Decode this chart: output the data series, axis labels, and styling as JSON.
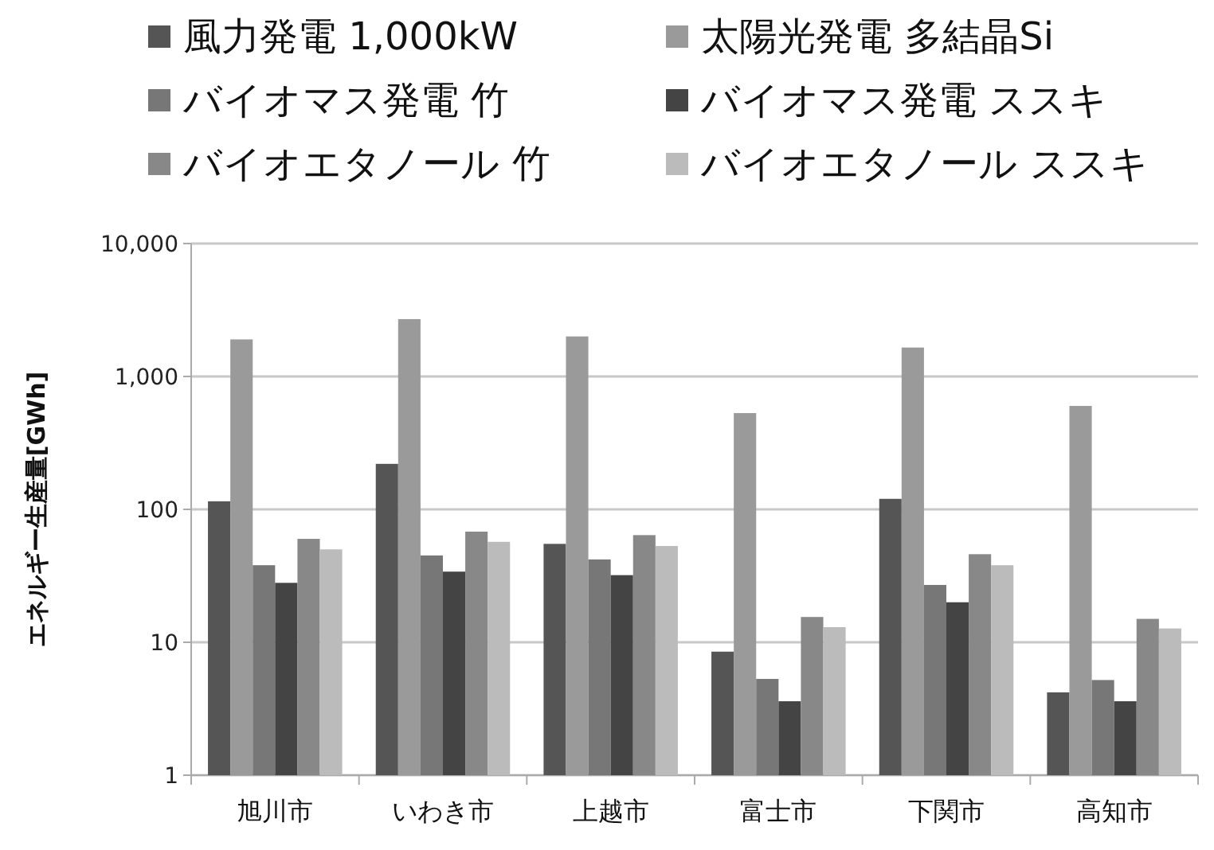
{
  "chart_data": {
    "type": "bar",
    "ylabel": "エネルギー生産量[GWh]",
    "categories": [
      "旭川市",
      "いわき市",
      "上越市",
      "富士市",
      "下関市",
      "高知市"
    ],
    "series": [
      {
        "name": "風力発電 1,000kW",
        "color": "#555555",
        "values": [
          115,
          220,
          55,
          8.5,
          120,
          4.2
        ]
      },
      {
        "name": "太陽光発電 多結晶Si",
        "color": "#9a9a9a",
        "values": [
          1900,
          2700,
          2000,
          530,
          1650,
          600
        ]
      },
      {
        "name": "バイオマス発電 竹",
        "color": "#777777",
        "values": [
          38,
          45,
          42,
          5.3,
          27,
          5.2
        ]
      },
      {
        "name": "バイオマス発電 ススキ",
        "color": "#444444",
        "values": [
          28,
          34,
          32,
          3.6,
          20,
          3.6
        ]
      },
      {
        "name": "バイオエタノール 竹",
        "color": "#888888",
        "values": [
          60,
          68,
          64,
          15.5,
          46,
          15
        ]
      },
      {
        "name": "バイオエタノール ススキ",
        "color": "#bbbbbb",
        "values": [
          50,
          57,
          53,
          13,
          38,
          12.7
        ]
      }
    ],
    "log": true,
    "ylim": [
      1,
      10000
    ],
    "yticks": [
      1,
      10,
      100,
      {
        "value": 1000,
        "label": "1,000"
      },
      {
        "value": 10000,
        "label": "10,000"
      }
    ],
    "grid": "y",
    "legend": "top"
  }
}
